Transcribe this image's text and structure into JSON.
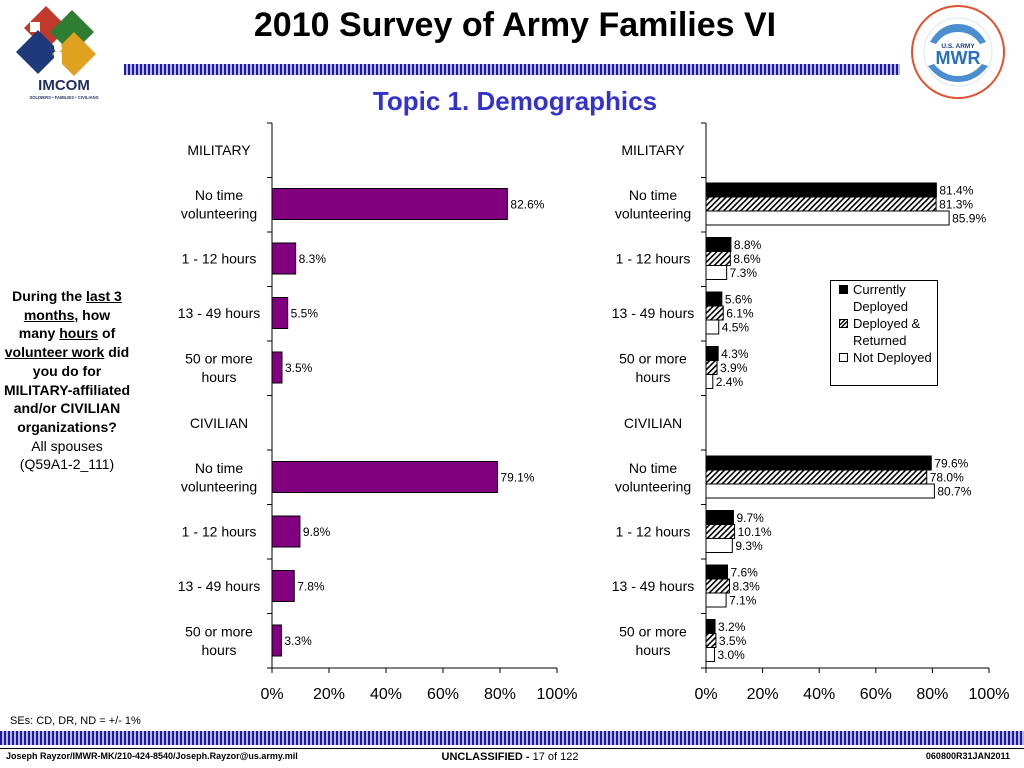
{
  "header": {
    "title": "2010 Survey of Army Families VI",
    "subtitle": "Topic 1. Demographics",
    "logo_left_text": "IMCOM",
    "logo_left_tagline": "SOLDIERS • FAMILIES • CIVILIANS",
    "logo_right_text": "MWR",
    "logo_right_top": "U.S. ARMY"
  },
  "question": {
    "line_prefix": "During the ",
    "emph_last": "last 3 months",
    "mid1": ", how many ",
    "emph_hours": "hours",
    "mid2": " of ",
    "emph_vol": "volunteer work",
    "suffix": " did you do for MILITARY-affiliated and/or CIVILIAN organizations?",
    "population": "All spouses",
    "code": "(Q59A1-2_111)"
  },
  "se_note": "SEs: CD, DR, ND = +/- 1%",
  "footer": {
    "left": "Joseph Rayzor/IMWR-MK/210-424-8540/Joseph.Rayzor@us.army.mil",
    "classification": "UNCLASSIFIED - ",
    "page": "17 of 122",
    "right": "060800R31JAN2011"
  },
  "colors": {
    "bar_single": "#800080",
    "accent_blue": "#3333cc",
    "stripe_dark": "#1a1aa6",
    "stripe_light": "#b8b8f2"
  },
  "legend": {
    "items": [
      {
        "label": "Currently Deployed",
        "style": "solid-black"
      },
      {
        "label": "Deployed & Returned",
        "style": "hatched"
      },
      {
        "label": "Not Deployed",
        "style": "white"
      }
    ],
    "position": "right-middle"
  },
  "chart_data": [
    {
      "type": "bar",
      "orientation": "horizontal",
      "sections": [
        "MILITARY",
        "CIVILIAN"
      ],
      "categories": [
        "No time volunteering",
        "1 - 12 hours",
        "13 - 49 hours",
        "50 or more hours"
      ],
      "series": [
        {
          "values": [
            [
              82.6,
              8.3,
              5.5,
              3.5
            ],
            [
              79.1,
              9.8,
              7.8,
              3.3
            ]
          ],
          "labels": [
            [
              "82.6%",
              "8.3%",
              "5.5%",
              "3.5%"
            ],
            [
              "79.1%",
              "9.8%",
              "7.8%",
              "3.3%"
            ]
          ]
        }
      ],
      "xlim": [
        0,
        100
      ],
      "xticks": [
        "0%",
        "20%",
        "40%",
        "60%",
        "80%",
        "100%"
      ],
      "grid": false
    },
    {
      "type": "bar",
      "orientation": "horizontal",
      "sections": [
        "MILITARY",
        "CIVILIAN"
      ],
      "categories": [
        "No time volunteering",
        "1 - 12 hours",
        "13 - 49 hours",
        "50 or more hours"
      ],
      "series": [
        {
          "name": "Currently Deployed",
          "values": [
            [
              81.4,
              8.8,
              5.6,
              4.3
            ],
            [
              79.6,
              9.7,
              7.6,
              3.2
            ]
          ],
          "labels": [
            [
              "81.4%",
              "8.8%",
              "5.6%",
              "4.3%"
            ],
            [
              "79.6%",
              "9.7%",
              "7.6%",
              "3.2%"
            ]
          ]
        },
        {
          "name": "Deployed & Returned",
          "values": [
            [
              81.3,
              8.6,
              6.1,
              3.9
            ],
            [
              78.0,
              10.1,
              8.3,
              3.5
            ]
          ],
          "labels": [
            [
              "81.3%",
              "8.6%",
              "6.1%",
              "3.9%"
            ],
            [
              "78.0%",
              "10.1%",
              "8.3%",
              "3.5%"
            ]
          ]
        },
        {
          "name": "Not Deployed",
          "values": [
            [
              85.9,
              7.3,
              4.5,
              2.4
            ],
            [
              80.7,
              9.3,
              7.1,
              3.0
            ]
          ],
          "labels": [
            [
              "85.9%",
              "7.3%",
              "4.5%",
              "2.4%"
            ],
            [
              "80.7%",
              "9.3%",
              "7.1%",
              "3.0%"
            ]
          ]
        }
      ],
      "xlim": [
        0,
        100
      ],
      "xticks": [
        "0%",
        "20%",
        "40%",
        "60%",
        "80%",
        "100%"
      ],
      "grid": false
    }
  ]
}
